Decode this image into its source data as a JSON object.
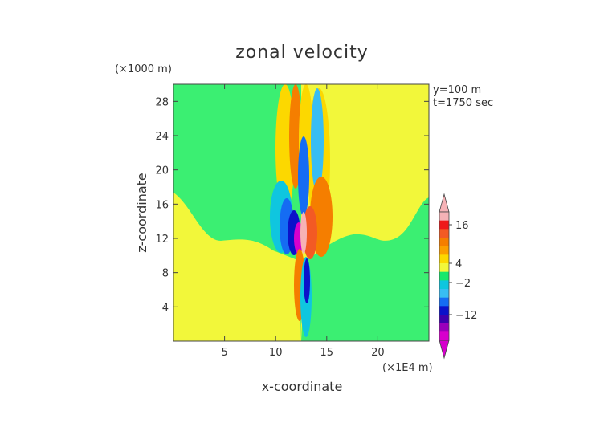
{
  "chart_data": {
    "type": "heatmap",
    "title": "zonal velocity",
    "xlabel": "x-coordinate",
    "ylabel": "z-coordinate",
    "x_unit": "(×1E4 m)",
    "y_unit": "(×1000 m)",
    "annotations": [
      "y=100 m",
      "t=1750 sec"
    ],
    "xlim": [
      0,
      25
    ],
    "ylim": [
      0,
      30
    ],
    "x_ticks": [
      5,
      10,
      15,
      20
    ],
    "y_ticks": [
      4,
      8,
      12,
      16,
      20,
      24,
      28
    ],
    "colorbar": {
      "tick_labels": [
        "16",
        "4",
        "−2",
        "−12"
      ],
      "tick_values": [
        16,
        4,
        -2,
        -12
      ],
      "colors_top_to_bottom": [
        "#f6b2b6",
        "#ee1a1a",
        "#f35a24",
        "#f57e00",
        "#fb9f00",
        "#fcd800",
        "#f2f73a",
        "#16e86c",
        "#0fc6df",
        "#38bdf3",
        "#156cf3",
        "#0b11ca",
        "#3f00ae",
        "#9b00bb",
        "#d700cd"
      ],
      "extend": "both"
    },
    "background": {
      "left_color": "#3bef72",
      "right_color": "#f2f73a",
      "lower_left_color": "#f2f73a",
      "lower_right_color": "#3bef72",
      "split_x": 12.5
    }
  }
}
